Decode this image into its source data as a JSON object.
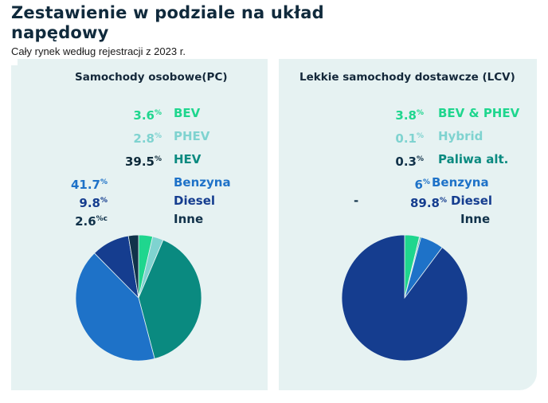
{
  "header": {
    "title": "Zestawienie w podziale na układ napędowy",
    "subtitle": "Cały rynek według rejestracji z 2023 r."
  },
  "colors": {
    "bev": "#1fd68e",
    "phev": "#7fd3d0",
    "hev": "#0a8a80",
    "benzyna": "#1e72c8",
    "diesel": "#153d8f",
    "inne": "#11324a",
    "panel": "#e6f2f2"
  },
  "left": {
    "heading": "Samochody osobowe(PC)",
    "rows": [
      {
        "value": "3.6",
        "unit": "%",
        "label": "BEV"
      },
      {
        "value": "2.8",
        "unit": "%",
        "label": "PHEV"
      },
      {
        "value": "39.5",
        "unit": "%",
        "label": "HEV"
      },
      {
        "value": "41.7",
        "unit": "%",
        "label": "Benzyna"
      },
      {
        "value": "9.8",
        "unit": "%",
        "label": "Diesel"
      },
      {
        "value": "2.6",
        "unit": "%c",
        "label": "Inne"
      }
    ]
  },
  "right": {
    "heading": "Lekkie samochody dostawcze (LCV)",
    "rows": [
      {
        "value": "3.8",
        "unit": "%",
        "label": "BEV & PHEV"
      },
      {
        "value": "0.1",
        "unit": "%",
        "label": "Hybrid"
      },
      {
        "value": "0.3",
        "unit": "%",
        "label": "Paliwa alt."
      },
      {
        "value": "6",
        "unit": "%",
        "label": "Benzyna"
      },
      {
        "value": "89.8",
        "unit": "%",
        "label": "Diesel"
      },
      {
        "value": "",
        "unit": "",
        "label": "Inne"
      }
    ],
    "dash": "-"
  },
  "chart_data": [
    {
      "type": "pie",
      "title": "Samochody osobowe(PC)",
      "categories": [
        "BEV",
        "PHEV",
        "HEV",
        "Benzyna",
        "Diesel",
        "Inne"
      ],
      "values": [
        3.6,
        2.8,
        39.5,
        41.7,
        9.8,
        2.6
      ],
      "colors": [
        "#1fd68e",
        "#7fd3d0",
        "#0a8a80",
        "#1e72c8",
        "#153d8f",
        "#11324a"
      ]
    },
    {
      "type": "pie",
      "title": "Lekkie samochody dostawcze (LCV)",
      "categories": [
        "BEV & PHEV",
        "Hybrid",
        "Paliwa alt.",
        "Benzyna",
        "Diesel"
      ],
      "values": [
        3.8,
        0.1,
        0.3,
        6,
        89.8
      ],
      "colors": [
        "#1fd68e",
        "#7fd3d0",
        "#0a8a80",
        "#1e72c8",
        "#153d8f"
      ]
    }
  ]
}
